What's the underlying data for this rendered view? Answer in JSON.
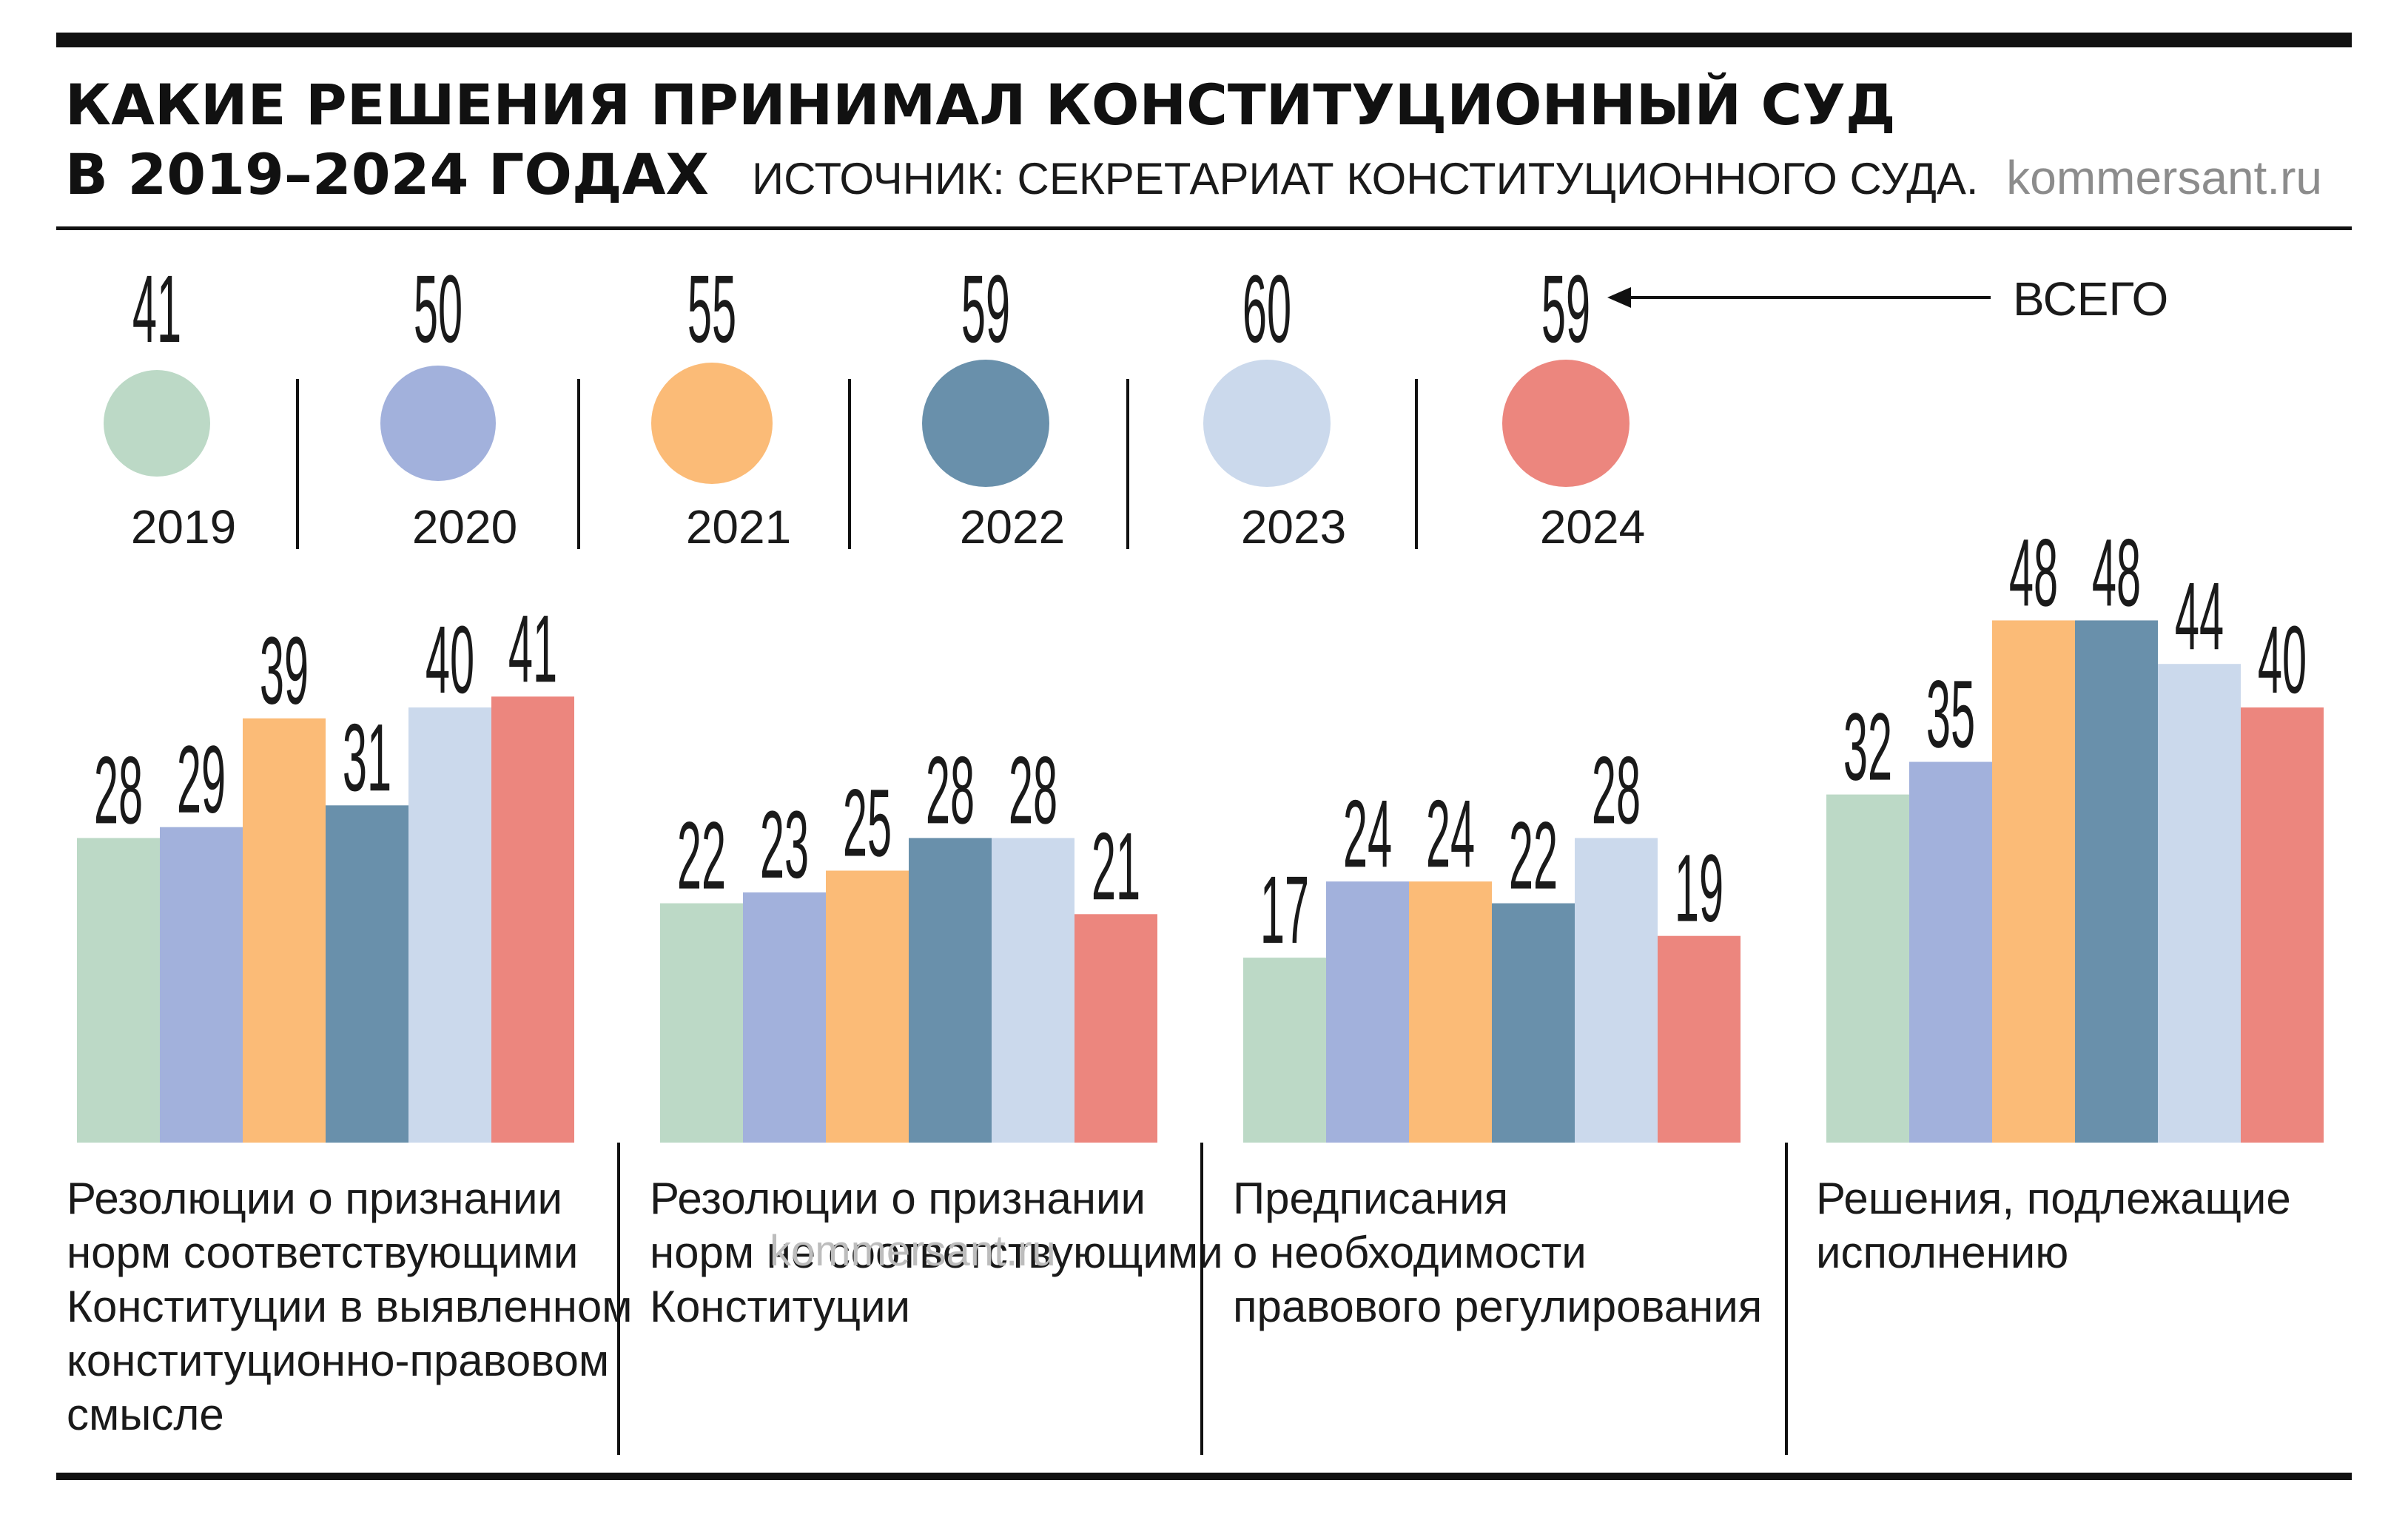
{
  "header": {
    "title_line1": "КАКИЕ РЕШЕНИЯ ПРИНИМАЛ КОНСТИТУЦИОННЫЙ СУД",
    "title_line2": "В 2019–2024 ГОДАХ",
    "source": "ИСТОЧНИК: СЕКРЕТАРИАТ КОНСТИТУЦИОННОГО СУДА.",
    "site": "kommersant.ru"
  },
  "colors": {
    "2019": "#bcd9c6",
    "2020": "#a2b1dc",
    "2021": "#fbbb77",
    "2022": "#6990ab",
    "2023": "#cbd9ec",
    "2024": "#ec867e"
  },
  "totals": {
    "label": "ВСЕГО",
    "years": [
      "2019",
      "2020",
      "2021",
      "2022",
      "2023",
      "2024"
    ],
    "values": [
      41,
      50,
      55,
      59,
      60,
      59
    ]
  },
  "watermark": "kommersant.ru",
  "chart_data": [
    {
      "type": "bar",
      "title": "Резолюции о признании норм соответствующими Конституции в выявленном конституционно-правовом смысле",
      "title_lines": [
        "Резолюции о признании",
        "норм соответствующими",
        "Конституции в выявленном",
        "конституционно-правовом",
        "смысле"
      ],
      "categories": [
        "2019",
        "2020",
        "2021",
        "2022",
        "2023",
        "2024"
      ],
      "values": [
        28,
        29,
        39,
        31,
        40,
        41
      ]
    },
    {
      "type": "bar",
      "title": "Резолюции о признании норм не соответствующими Конституции",
      "title_lines": [
        "Резолюции о признании",
        "норм не соответствующими",
        "Конституции"
      ],
      "categories": [
        "2019",
        "2020",
        "2021",
        "2022",
        "2023",
        "2024"
      ],
      "values": [
        22,
        23,
        25,
        28,
        28,
        21
      ]
    },
    {
      "type": "bar",
      "title": "Предписания о необходимости правового регулирования",
      "title_lines": [
        "Предписания",
        "о необходимости",
        "правового регулирования"
      ],
      "categories": [
        "2019",
        "2020",
        "2021",
        "2022",
        "2023",
        "2024"
      ],
      "values": [
        17,
        24,
        24,
        22,
        28,
        19
      ]
    },
    {
      "type": "bar",
      "title": "Решения, подлежащие исполнению",
      "title_lines": [
        "Решения, подлежащие",
        "исполнению"
      ],
      "categories": [
        "2019",
        "2020",
        "2021",
        "2022",
        "2023",
        "2024"
      ],
      "values": [
        32,
        35,
        48,
        48,
        44,
        40
      ]
    }
  ]
}
